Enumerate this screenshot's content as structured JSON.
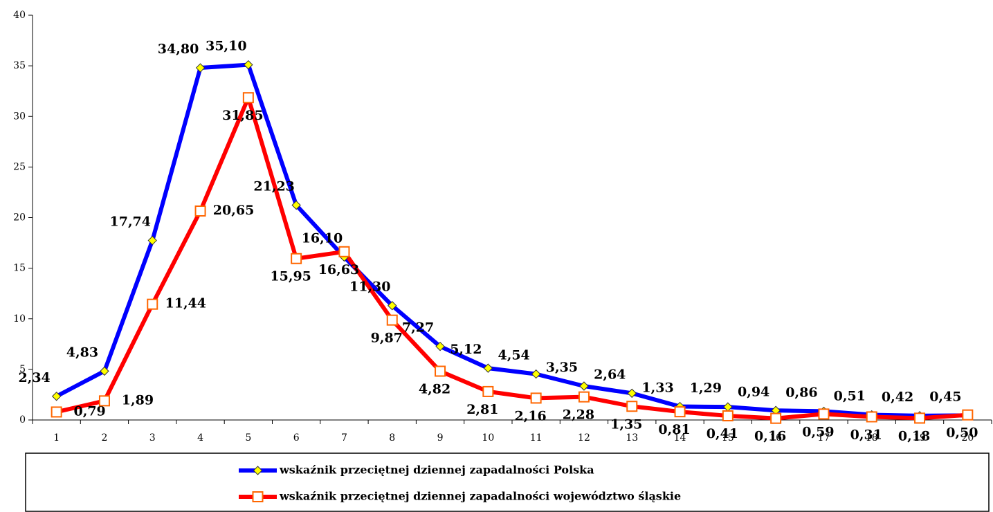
{
  "chart_data": {
    "type": "line",
    "categories": [
      "1",
      "2",
      "3",
      "4",
      "5",
      "6",
      "7",
      "8",
      "9",
      "10",
      "11",
      "12",
      "13",
      "14",
      "15",
      "16",
      "17",
      "18",
      "19",
      "20"
    ],
    "series": [
      {
        "name": "wskaźnik przeciętnej dziennej zapadalności Polska",
        "color": "#0000ff",
        "marker_fill": "#ffff00",
        "values": [
          2.34,
          4.83,
          17.74,
          34.8,
          35.1,
          21.23,
          16.1,
          11.3,
          7.27,
          5.12,
          4.54,
          3.35,
          2.64,
          1.33,
          1.29,
          0.94,
          0.86,
          0.51,
          0.42,
          0.45
        ],
        "value_labels": [
          "2,34",
          "4,83",
          "17,74",
          "34,80",
          "35,10",
          "21,23",
          "16,10",
          "11,30",
          "7,27",
          "5,12",
          "4,54",
          "3,35",
          "2,64",
          "1,33",
          "1,29",
          "0,94",
          "0,86",
          "0,51",
          "0,42",
          "0,45"
        ]
      },
      {
        "name": "wskaźnik przeciętnej dziennej zapadalności województwo śląskie",
        "color": "#ff0000",
        "marker_fill": "#ffffff",
        "values": [
          0.79,
          1.89,
          11.44,
          20.65,
          31.85,
          15.95,
          16.63,
          9.87,
          4.82,
          2.81,
          2.16,
          2.28,
          1.35,
          0.81,
          0.41,
          0.16,
          0.59,
          0.31,
          0.18,
          0.5
        ],
        "value_labels": [
          "0,79",
          "1,89",
          "11,44",
          "20,65",
          "31,85",
          "15,95",
          "16,63",
          "9,87",
          "4,82",
          "2,81",
          "2,16",
          "2,28",
          "1,35",
          "0,81",
          "0,41",
          "0,16",
          "0,59",
          "0,31",
          "0,18",
          "0,50"
        ]
      }
    ],
    "ylim": [
      0,
      40
    ],
    "yticks": [
      0,
      5,
      10,
      15,
      20,
      25,
      30,
      35,
      40
    ],
    "legend": "bottom"
  }
}
